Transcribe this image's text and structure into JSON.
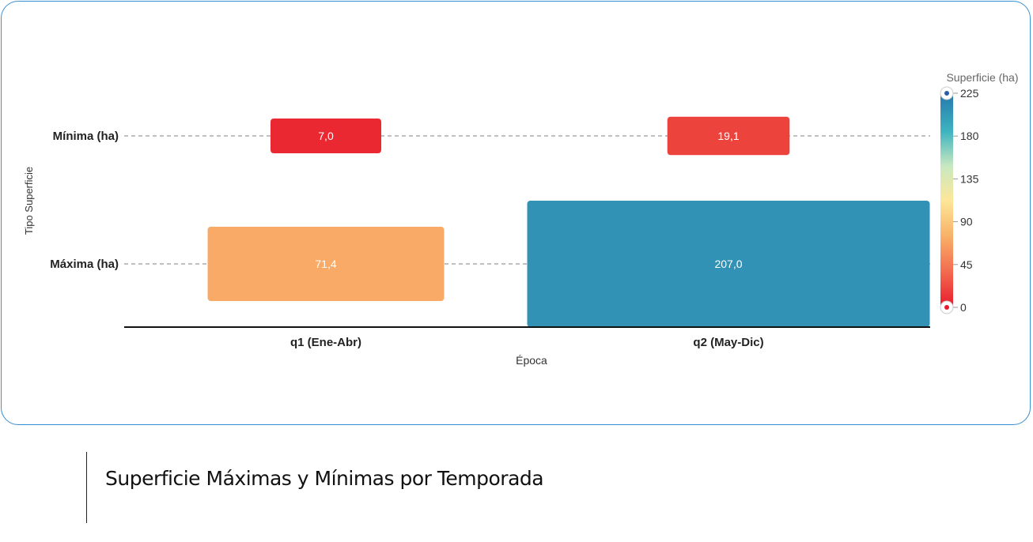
{
  "chart_data": {
    "type": "heatmap",
    "x_categories": [
      "q1 (Ene-Abr)",
      "q2 (May-Dic)"
    ],
    "y_categories": [
      "Mínima (ha)",
      "Máxima (ha)"
    ],
    "xlabel": "Época",
    "ylabel": "Tipo Superficie",
    "cells": [
      {
        "x": "q1 (Ene-Abr)",
        "y": "Mínima (ha)",
        "value": 7.0,
        "label": "7,0"
      },
      {
        "x": "q2 (May-Dic)",
        "y": "Mínima (ha)",
        "value": 19.1,
        "label": "19,1"
      },
      {
        "x": "q1 (Ene-Abr)",
        "y": "Máxima (ha)",
        "value": 71.4,
        "label": "71,4"
      },
      {
        "x": "q2 (May-Dic)",
        "y": "Máxima (ha)",
        "value": 207.0,
        "label": "207,0"
      }
    ],
    "color_scale": {
      "title": "Superficie (ha)",
      "min": 0,
      "max": 225,
      "ticks": [
        "225",
        "180",
        "135",
        "90",
        "45",
        "0"
      ],
      "colors": [
        "#e8192c",
        "#f26d4f",
        "#f9b36a",
        "#fde79a",
        "#c8e8c0",
        "#3fb4c0",
        "#2677ad"
      ]
    },
    "legend_position": "right"
  },
  "caption": "Superficie Máximas y Mínimas por Temporada"
}
